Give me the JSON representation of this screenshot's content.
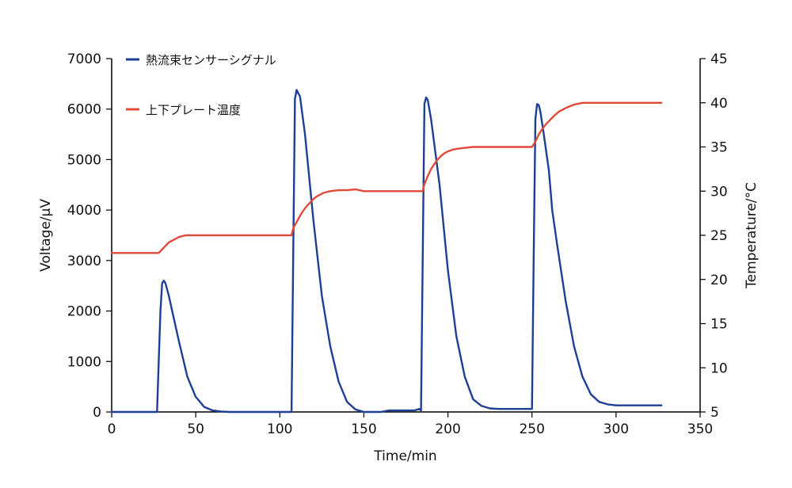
{
  "chart_data": {
    "type": "line",
    "title": "",
    "xlabel": "Time/min",
    "ylabel_left": "Voltage/μV",
    "ylabel_right": "Temperature/°C",
    "xlim": [
      0,
      350
    ],
    "ylim_left": [
      0,
      7000
    ],
    "ylim_right": [
      5,
      45
    ],
    "x_ticks": [
      "0",
      "50",
      "100",
      "150",
      "200",
      "250",
      "300",
      "350"
    ],
    "y_left_ticks": [
      "0",
      "1000",
      "2000",
      "3000",
      "4000",
      "5000",
      "6000",
      "7000"
    ],
    "y_right_ticks": [
      "5",
      "10",
      "15",
      "20",
      "25",
      "30",
      "35",
      "40",
      "45"
    ],
    "grid": false,
    "legend_position": "top-left",
    "series": [
      {
        "name": "熱流束センサーシグナル",
        "axis": "left",
        "color": "#1f3f94",
        "x": [
          0,
          27,
          28,
          29,
          30,
          31,
          32,
          34,
          36,
          40,
          45,
          50,
          55,
          60,
          65,
          70,
          80,
          90,
          100,
          107,
          108,
          109,
          110,
          112,
          115,
          120,
          125,
          130,
          135,
          140,
          145,
          150,
          155,
          160,
          165,
          170,
          175,
          180,
          183,
          184,
          185,
          186,
          187,
          188,
          190,
          195,
          200,
          205,
          210,
          215,
          220,
          225,
          230,
          240,
          250,
          251,
          252,
          253,
          254,
          255,
          257,
          260,
          261,
          262,
          265,
          270,
          275,
          280,
          285,
          290,
          295,
          300,
          305,
          310,
          315,
          320,
          327
        ],
        "values": [
          0,
          0,
          1000,
          2000,
          2550,
          2600,
          2550,
          2300,
          2000,
          1400,
          700,
          300,
          100,
          30,
          10,
          0,
          0,
          0,
          0,
          0,
          3200,
          6200,
          6380,
          6250,
          5500,
          3800,
          2300,
          1300,
          600,
          200,
          50,
          0,
          0,
          0,
          30,
          30,
          30,
          30,
          60,
          30,
          3000,
          6100,
          6230,
          6180,
          5800,
          4500,
          2800,
          1500,
          700,
          250,
          120,
          70,
          60,
          60,
          60,
          3000,
          5800,
          6100,
          6080,
          5950,
          5500,
          4800,
          4400,
          4000,
          3300,
          2200,
          1300,
          700,
          350,
          200,
          150,
          130,
          130,
          130,
          130,
          130,
          130
        ]
      },
      {
        "name": "上下プレート温度",
        "axis": "right",
        "color": "#e04a3a",
        "x": [
          0,
          20,
          28,
          30,
          32,
          34,
          36,
          38,
          40,
          42,
          44,
          46,
          50,
          60,
          70,
          80,
          90,
          100,
          107,
          108,
          110,
          112,
          114,
          116,
          118,
          120,
          122,
          124,
          126,
          128,
          130,
          135,
          140,
          145,
          150,
          160,
          170,
          180,
          185,
          186,
          188,
          190,
          192,
          194,
          196,
          198,
          200,
          203,
          206,
          210,
          215,
          220,
          230,
          240,
          245,
          250,
          252,
          254,
          256,
          258,
          260,
          263,
          266,
          270,
          275,
          280,
          290,
          300,
          310,
          320,
          327
        ],
        "values": [
          23,
          23,
          23,
          23.4,
          23.8,
          24.2,
          24.4,
          24.6,
          24.8,
          24.9,
          25,
          25,
          25,
          25,
          25,
          25,
          25,
          25,
          25,
          25.8,
          26.5,
          27.2,
          27.8,
          28.3,
          28.7,
          29.1,
          29.4,
          29.6,
          29.8,
          29.9,
          30,
          30.1,
          30.1,
          30.2,
          30,
          30,
          30,
          30,
          30,
          30.8,
          31.7,
          32.5,
          33.1,
          33.6,
          34,
          34.3,
          34.5,
          34.7,
          34.8,
          34.9,
          35,
          35,
          35,
          35,
          35,
          35,
          35.6,
          36.4,
          37,
          37.5,
          37.9,
          38.5,
          39,
          39.4,
          39.8,
          40,
          40,
          40,
          40,
          40,
          40
        ]
      }
    ]
  }
}
